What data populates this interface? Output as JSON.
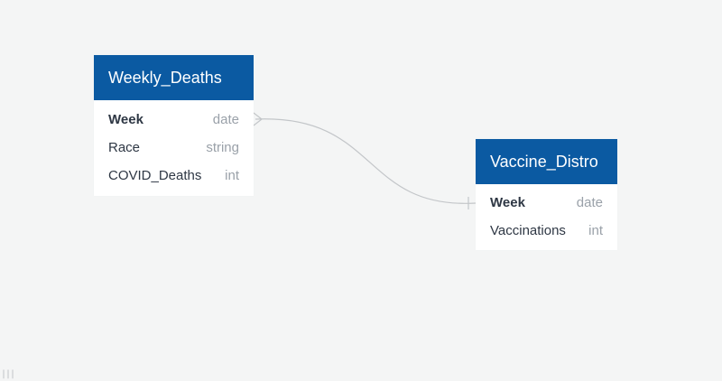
{
  "colors": {
    "canvas_background": "#f4f5f5",
    "header_background": "#0b5aa2",
    "connector": "#c3c6c9"
  },
  "entities": [
    {
      "name": "Weekly_Deaths",
      "fields": [
        {
          "name": "Week",
          "type": "date",
          "primary_key": true
        },
        {
          "name": "Race",
          "type": "string",
          "primary_key": false
        },
        {
          "name": "COVID_Deaths",
          "type": "int",
          "primary_key": false
        }
      ]
    },
    {
      "name": "Vaccine_Distro",
      "fields": [
        {
          "name": "Week",
          "type": "date",
          "primary_key": true
        },
        {
          "name": "Vaccinations",
          "type": "int",
          "primary_key": false
        }
      ]
    }
  ],
  "relationships": [
    {
      "from": "Weekly_Deaths.Week",
      "from_cardinality": "many",
      "to": "Vaccine_Distro.Week",
      "to_cardinality": "one"
    }
  ],
  "footer": {
    "resize_handle_glyph": "|||"
  }
}
